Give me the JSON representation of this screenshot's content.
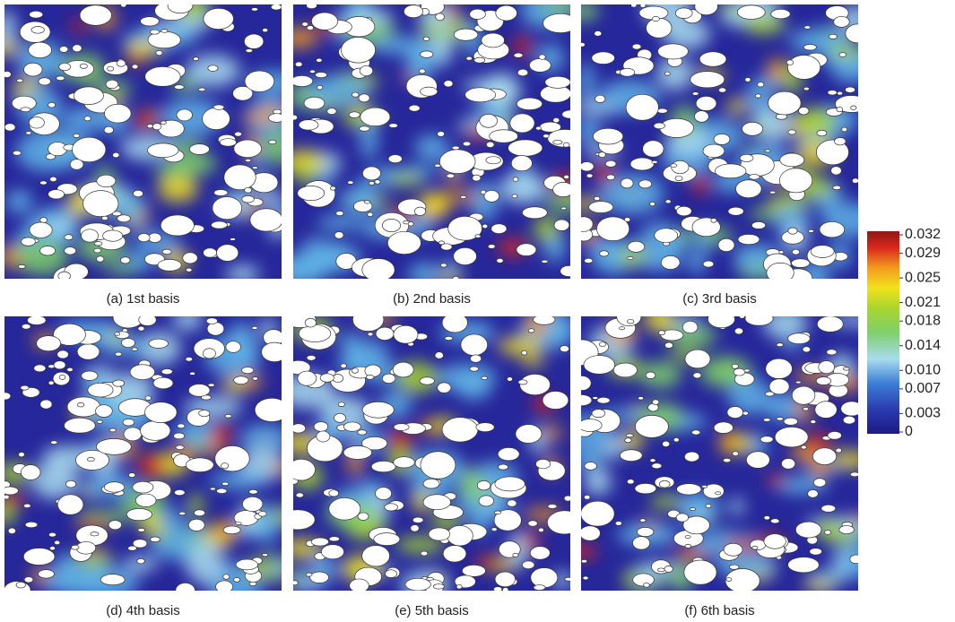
{
  "panels": [
    {
      "caption": "(a) 1st basis"
    },
    {
      "caption": "(b) 2nd basis"
    },
    {
      "caption": "(c) 3rd basis"
    },
    {
      "caption": "(d) 4th basis"
    },
    {
      "caption": "(e) 5th basis"
    },
    {
      "caption": "(f) 6th basis"
    }
  ],
  "colorbar": {
    "range": [
      0,
      0.032
    ],
    "ticks": [
      0.032,
      0.029,
      0.025,
      0.021,
      0.018,
      0.014,
      {
        "value": 0.01,
        "label": "0.010"
      },
      0.007,
      0.003,
      0
    ]
  }
}
